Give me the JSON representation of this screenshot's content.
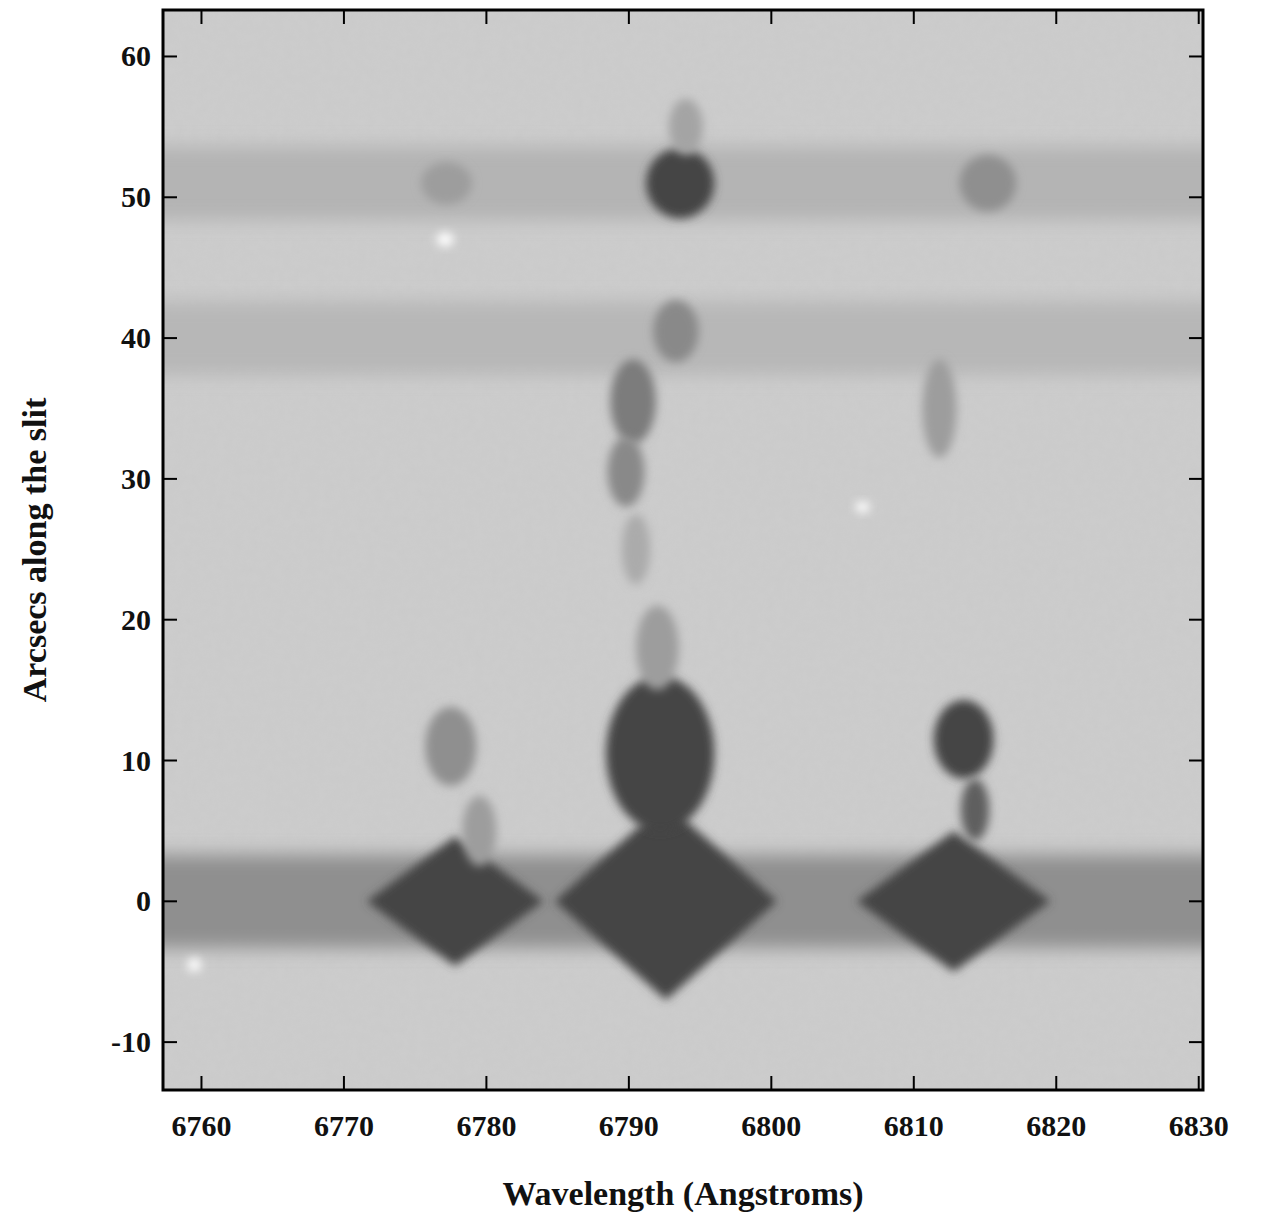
{
  "chart_data": {
    "type": "spectrum_image",
    "x_label": "Wavelength (Angstroms)",
    "y_label": "Arcsecs along the slit",
    "xlim": [
      6757.3,
      6830.3
    ],
    "ylim": [
      -13.4,
      63.3
    ],
    "xticks": [
      6760,
      6770,
      6780,
      6790,
      6800,
      6810,
      6820,
      6830
    ],
    "yticks": [
      -10,
      0,
      10,
      20,
      30,
      40,
      50,
      60
    ],
    "bands": [
      {
        "y": 0,
        "dy": 3.3,
        "level": 0.45
      },
      {
        "y": 51,
        "dy": 2.6,
        "level": 0.18
      },
      {
        "y": 40,
        "dy": 2.6,
        "level": 0.16
      }
    ],
    "features": [
      {
        "x": 6792.6,
        "y": 0,
        "dx": 7.8,
        "dy": 7,
        "level": 1,
        "marker": "diamond"
      },
      {
        "x": 6792.2,
        "y": 10.5,
        "dx": 3.8,
        "dy": 5.5,
        "level": 1,
        "marker": "circle"
      },
      {
        "x": 6792,
        "y": 18,
        "dx": 1.5,
        "dy": 3,
        "level": 0.35,
        "marker": "circle"
      },
      {
        "x": 6777.8,
        "y": 0,
        "dx": 6.2,
        "dy": 4.6,
        "level": 1,
        "marker": "diamond"
      },
      {
        "x": 6777.5,
        "y": 11,
        "dx": 1.8,
        "dy": 2.8,
        "level": 0.45,
        "marker": "circle"
      },
      {
        "x": 6779.5,
        "y": 5,
        "dx": 1.2,
        "dy": 2.5,
        "level": 0.35,
        "marker": "circle"
      },
      {
        "x": 6812.8,
        "y": 0,
        "dx": 6.8,
        "dy": 5,
        "level": 1,
        "marker": "diamond"
      },
      {
        "x": 6813.5,
        "y": 11.5,
        "dx": 2.1,
        "dy": 2.8,
        "level": 1,
        "marker": "circle"
      },
      {
        "x": 6814.3,
        "y": 6.5,
        "dx": 1,
        "dy": 2.2,
        "level": 0.8,
        "marker": "circle"
      },
      {
        "x": 6793.6,
        "y": 51,
        "dx": 2.4,
        "dy": 2.5,
        "level": 1,
        "marker": "circle"
      },
      {
        "x": 6794,
        "y": 55,
        "dx": 1.2,
        "dy": 2,
        "level": 0.3,
        "marker": "circle"
      },
      {
        "x": 6777.2,
        "y": 51,
        "dx": 1.8,
        "dy": 1.5,
        "level": 0.35,
        "marker": "circle"
      },
      {
        "x": 6815.2,
        "y": 51,
        "dx": 2,
        "dy": 2,
        "level": 0.45,
        "marker": "circle"
      },
      {
        "x": 6790.3,
        "y": 35.5,
        "dx": 1.6,
        "dy": 3,
        "level": 0.6,
        "marker": "circle"
      },
      {
        "x": 6789.8,
        "y": 30.5,
        "dx": 1.3,
        "dy": 2.5,
        "level": 0.5,
        "marker": "circle"
      },
      {
        "x": 6793.3,
        "y": 40.5,
        "dx": 1.6,
        "dy": 2.2,
        "level": 0.5,
        "marker": "circle"
      },
      {
        "x": 6790.5,
        "y": 25,
        "dx": 1,
        "dy": 2.5,
        "level": 0.25,
        "marker": "circle"
      },
      {
        "x": 6811.8,
        "y": 35,
        "dx": 1.2,
        "dy": 3.5,
        "level": 0.35,
        "marker": "circle"
      },
      {
        "x": 6777.1,
        "y": 47,
        "dx": 0.6,
        "dy": 0.5,
        "level": -0.5,
        "marker": "circle"
      },
      {
        "x": 6806.4,
        "y": 28,
        "dx": 0.5,
        "dy": 0.4,
        "level": -0.4,
        "marker": "circle"
      },
      {
        "x": 6759.5,
        "y": -4.5,
        "dx": 0.5,
        "dy": 0.5,
        "level": -0.35,
        "marker": "circle"
      }
    ]
  }
}
